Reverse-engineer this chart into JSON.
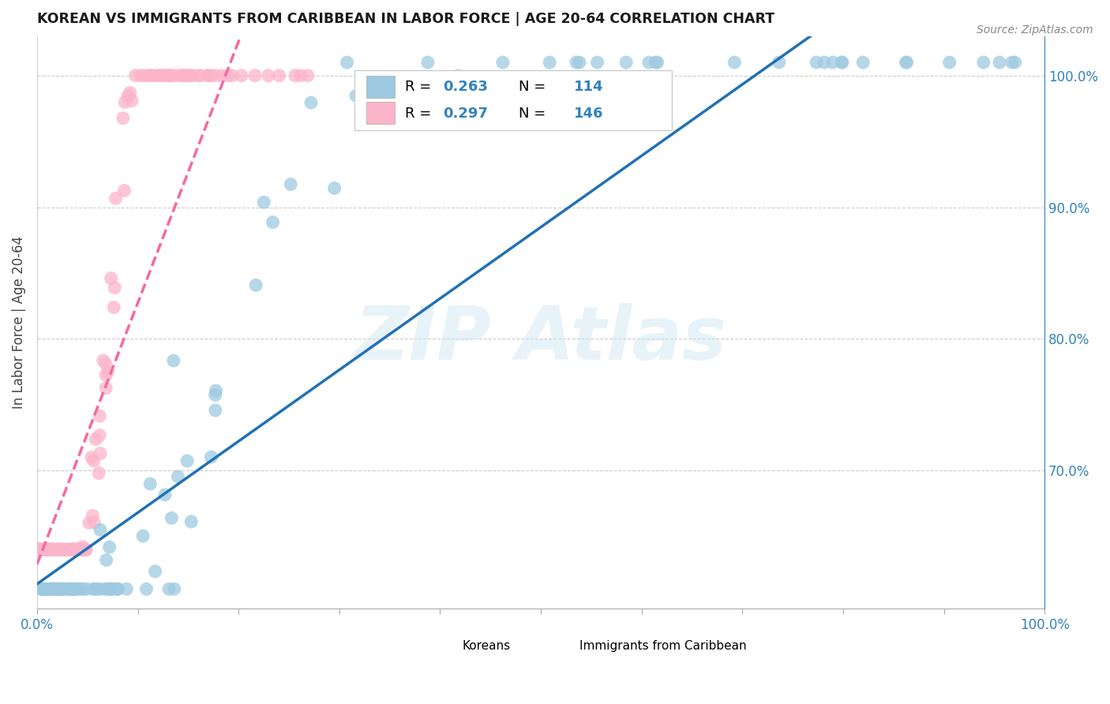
{
  "title": "KOREAN VS IMMIGRANTS FROM CARIBBEAN IN LABOR FORCE | AGE 20-64 CORRELATION CHART",
  "source": "Source: ZipAtlas.com",
  "ylabel": "In Labor Force | Age 20-64",
  "series1_name": "Koreans",
  "series1_R": 0.263,
  "series1_N": 114,
  "series1_color": "#9ecae1",
  "series1_line_color": "#2171b5",
  "series2_name": "Immigrants from Caribbean",
  "series2_R": 0.297,
  "series2_N": 146,
  "series2_color": "#fbb4c9",
  "series2_line_color": "#f768a1",
  "text_blue": "#3182bd",
  "watermark_color": "#d0e8f5",
  "background": "#ffffff",
  "grid_color": "#cccccc",
  "title_color": "#1a1a1a",
  "right_yticks": [
    0.7,
    0.8,
    0.9,
    1.0
  ],
  "right_yticklabels": [
    "70.0%",
    "80.0%",
    "90.0%",
    "100.0%"
  ],
  "ylim_low": 0.595,
  "ylim_high": 1.03
}
